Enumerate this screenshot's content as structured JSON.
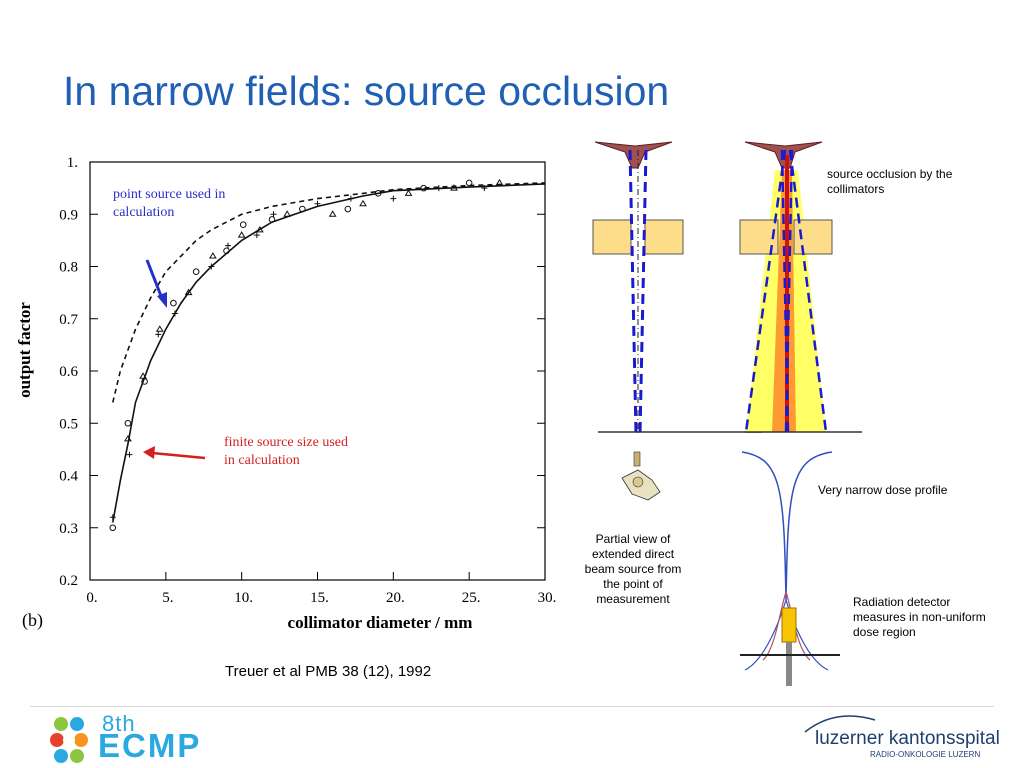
{
  "slide": {
    "title": "In narrow fields: source occlusion",
    "citation": "Treuer et al PMB 38 (12), 1992"
  },
  "chart_data": {
    "type": "line",
    "panel_label": "(b)",
    "xlabel": "collimator diameter / mm",
    "ylabel": "output factor",
    "xlim": [
      0,
      30
    ],
    "ylim": [
      0.2,
      1.0
    ],
    "x_ticks": [
      "0.",
      "5.",
      "10.",
      "15.",
      "20.",
      "25.",
      "30."
    ],
    "y_ticks": [
      "0.2",
      "0.3",
      "0.4",
      "0.5",
      "0.6",
      "0.7",
      "0.8",
      "0.9",
      "1."
    ],
    "series": [
      {
        "style": "dashed",
        "x": [
          1.5,
          2,
          3,
          4,
          5,
          6,
          7,
          8,
          10,
          12,
          15,
          18,
          20,
          25,
          30
        ],
        "values": [
          0.54,
          0.6,
          0.68,
          0.74,
          0.79,
          0.82,
          0.85,
          0.87,
          0.9,
          0.915,
          0.93,
          0.94,
          0.947,
          0.955,
          0.96
        ]
      },
      {
        "style": "solid",
        "x": [
          1.5,
          2,
          2.5,
          3,
          4,
          5,
          6,
          7,
          8,
          10,
          12,
          15,
          18,
          20,
          25,
          30
        ],
        "values": [
          0.31,
          0.39,
          0.46,
          0.54,
          0.62,
          0.68,
          0.73,
          0.77,
          0.8,
          0.85,
          0.885,
          0.915,
          0.935,
          0.945,
          0.952,
          0.958
        ]
      }
    ],
    "measured_points": {
      "x": [
        1.5,
        1.5,
        2.5,
        2.5,
        2.6,
        3.5,
        3.6,
        4.5,
        4.6,
        5.5,
        5.6,
        6.5,
        7,
        8,
        8.1,
        9,
        9.1,
        10,
        10.1,
        11,
        11.2,
        12,
        12.1,
        13,
        14,
        15,
        16,
        17,
        17.2,
        18,
        19,
        20,
        21,
        22,
        23,
        24,
        25,
        26,
        27
      ],
      "y": [
        0.3,
        0.32,
        0.47,
        0.5,
        0.44,
        0.59,
        0.58,
        0.67,
        0.68,
        0.73,
        0.71,
        0.75,
        0.79,
        0.8,
        0.82,
        0.83,
        0.84,
        0.86,
        0.88,
        0.86,
        0.87,
        0.89,
        0.9,
        0.9,
        0.91,
        0.92,
        0.9,
        0.91,
        0.93,
        0.92,
        0.94,
        0.93,
        0.94,
        0.95,
        0.95,
        0.95,
        0.96,
        0.95,
        0.96
      ]
    },
    "annotations": [
      {
        "text": "point source used in calculation",
        "color": "#2430c8"
      },
      {
        "text": "finite source size used in calculation",
        "color": "#d42020"
      }
    ]
  },
  "diagram": {
    "source_occlusion_label": "source occlusion by the collimators",
    "dose_profile_label": "Very narrow dose profile",
    "partial_view_label": "Partial view of extended direct beam source from the point of measurement",
    "detector_label": "Radiation detector measures in non-uniform dose region"
  },
  "footer": {
    "left_logo_top": "8th",
    "left_logo_main": "ECMP",
    "right_logo_main": "luzerner kantonsspital",
    "right_logo_sub": "RADIO-ONKOLOGIE LUZERN"
  },
  "colors": {
    "title": "#1f5fb4",
    "point_source": "#2430c8",
    "finite_source": "#d42020",
    "collimator": "#fddc8a",
    "beam_yellow": "#ffff66",
    "beam_orange": "#ff9a33",
    "ecmp": "#29a9e0",
    "luzern": "#1e3f6e"
  }
}
